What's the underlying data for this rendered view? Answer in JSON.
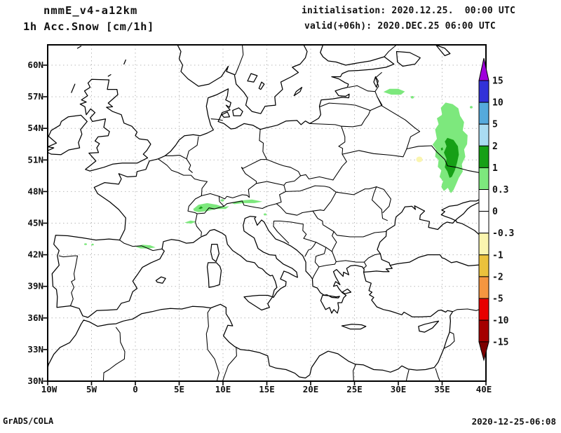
{
  "header": {
    "model": "nmmE_v4-a12km",
    "variable": "1h Acc.Snow [cm/1h]",
    "init_line": "initialisation: 2020.12.25.  00:00 UTC",
    "valid_line": "valid(+06h): 2020.DEC.25 06:00 UTC"
  },
  "footer": {
    "left": "GrADS/COLA",
    "right": "2020-12-25-06:08"
  },
  "chart_data": {
    "type": "heatmap",
    "title": "nmmE_v4-a12km",
    "subtitle": "1h Acc.Snow [cm/1h]",
    "units": "cm/1h",
    "projection": "latlon",
    "lon_range": [
      -10,
      40
    ],
    "lat_range": [
      30,
      62
    ],
    "x_ticks": [
      "10W",
      "5W",
      "0",
      "5E",
      "10E",
      "15E",
      "20E",
      "25E",
      "30E",
      "35E",
      "40E"
    ],
    "y_ticks": [
      "30N",
      "33N",
      "36N",
      "39N",
      "42N",
      "45N",
      "48N",
      "51N",
      "54N",
      "57N",
      "60N"
    ],
    "grid": "dotted",
    "legend_position": "right",
    "colorbar": {
      "tick_labels": [
        "15",
        "10",
        "5",
        "2",
        "1",
        "0.3",
        "0",
        "-0.3",
        "-1",
        "-2",
        "-5",
        "-10",
        "-15"
      ],
      "levels": [
        15,
        10,
        5,
        2,
        1,
        0.3,
        0,
        -0.3,
        -1,
        -2,
        -5,
        -10,
        -15
      ],
      "segment_colors_top_to_bottom": [
        "#3232D8",
        "#55AADC",
        "#AADCF2",
        "#16A016",
        "#7DE87D",
        "#FFFFFF",
        "#FFFFFF",
        "#FAF5AF",
        "#EBC23C",
        "#F59640",
        "#E80000",
        "#A50000"
      ],
      "above_max_color": "#A000DC",
      "below_min_color": "#7D0000"
    },
    "snow_regions": [
      {
        "name": "western-russia-main-band",
        "lon_range": [
          33.9,
          37.9
        ],
        "lat_range": [
          47.9,
          56.4
        ],
        "value_cm": "0.3-1",
        "core": {
          "lon_range": [
            35.2,
            36.9
          ],
          "lat_range": [
            49.3,
            53.1
          ],
          "value_cm": "1-2"
        }
      },
      {
        "name": "pskov-small-patch",
        "lon_range": [
          28.2,
          30.8
        ],
        "lat_range": [
          57.0,
          57.8
        ],
        "value_cm": "0.3-1"
      },
      {
        "name": "alps-band",
        "lon_range": [
          5.6,
          14.5
        ],
        "lat_range": [
          45.0,
          47.3
        ],
        "value_cm": "0.3-1",
        "cores_value_cm": "1-2"
      },
      {
        "name": "pyrenees-streak",
        "lon_range": [
          0.0,
          2.3
        ],
        "lat_range": [
          42.5,
          43.0
        ],
        "value_cm": "0.3-1"
      },
      {
        "name": "dnieper-negative-spot",
        "lon": 32.4,
        "lat": 51.0,
        "value_cm": "-0.3 to -1"
      }
    ]
  },
  "colors": {
    "snow_light": "#7DE87D",
    "snow_dark": "#16A016",
    "neg_light": "#FAF5AF",
    "grid": "#B9B9B9",
    "line": "#000000",
    "background": "#FFFFFF"
  }
}
